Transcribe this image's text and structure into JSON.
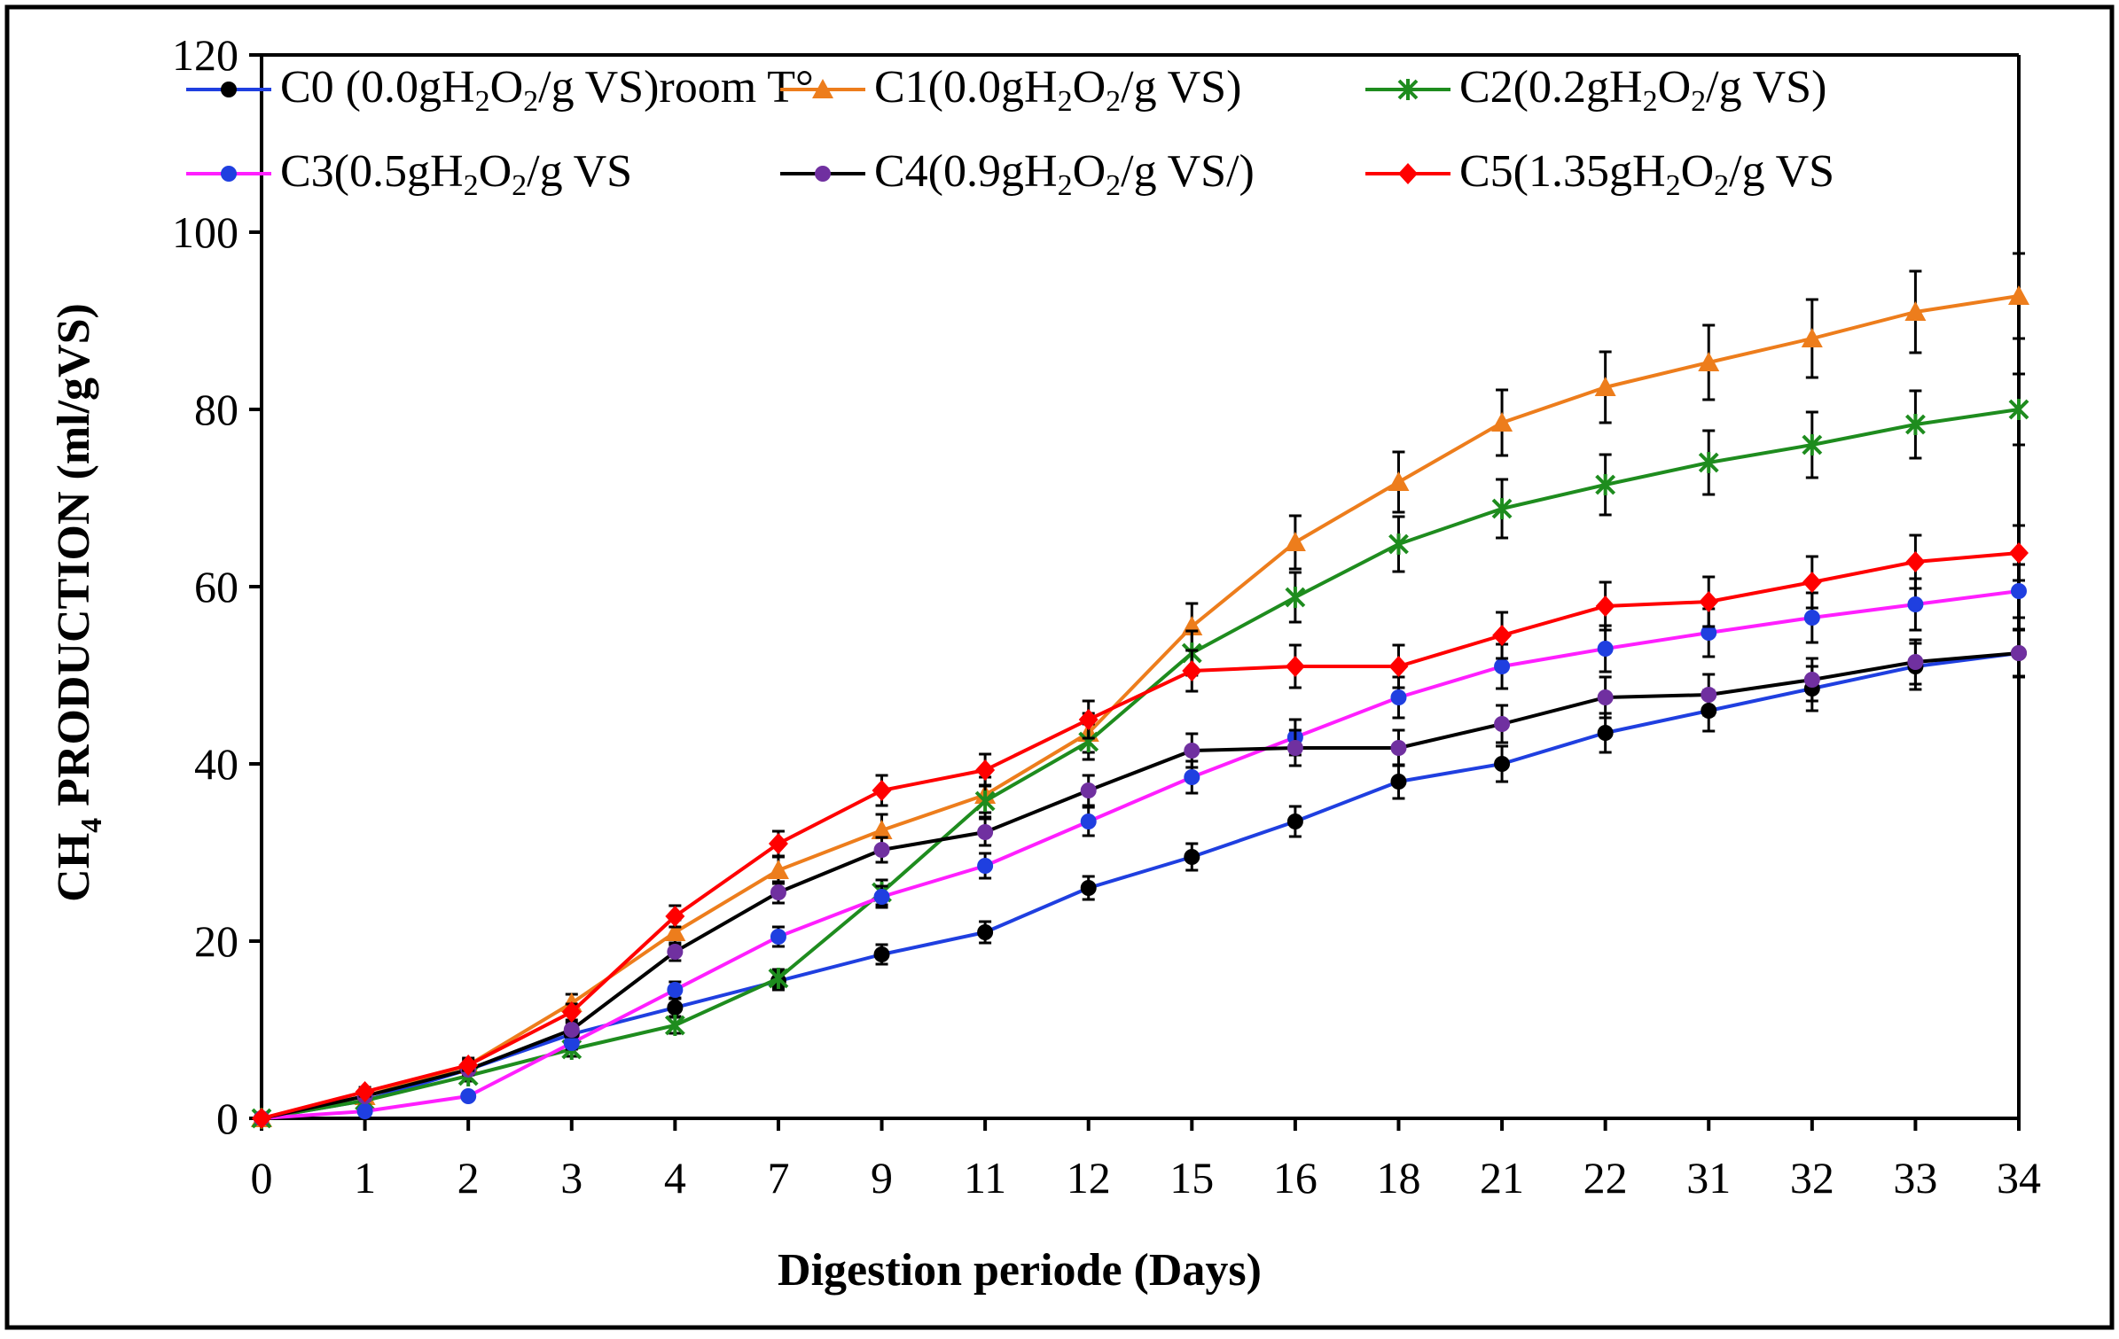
{
  "chart_data": {
    "type": "line",
    "title": "",
    "xlabel": "Digestion periode (Days)",
    "ylabel_main": "CH",
    "ylabel_sub": "4",
    "ylabel_rest": " PRODUCTION (ml/gVS)",
    "categories": [
      "0",
      "1",
      "2",
      "3",
      "4",
      "7",
      "9",
      "11",
      "12",
      "15",
      "16",
      "18",
      "21",
      "22",
      "31",
      "32",
      "33",
      "34"
    ],
    "ylim": [
      0,
      120
    ],
    "yticks": [
      0,
      20,
      40,
      60,
      80,
      100,
      120
    ],
    "ytick_labels": [
      "0",
      "20",
      "40",
      "60",
      "80",
      "100",
      "120"
    ],
    "grid": false,
    "legend_position": "top",
    "series": [
      {
        "name": "C0 (0.0gH2O2/g VS)room T°",
        "legend_parts": [
          "C0 (0.0gH",
          "2",
          "O",
          "2",
          "/g VS)room T°"
        ],
        "color": "#1f3fe0",
        "marker": "circle",
        "marker_color": "#000000",
        "values": [
          0,
          2.0,
          5.5,
          9.5,
          12.5,
          15.5,
          18.5,
          21.0,
          26.0,
          29.5,
          33.5,
          38.0,
          40.0,
          43.5,
          46.0,
          48.5,
          51.0,
          52.5
        ],
        "errors": [
          0.3,
          0.5,
          0.6,
          0.8,
          1.0,
          1.0,
          1.1,
          1.2,
          1.3,
          1.5,
          1.7,
          1.9,
          2.0,
          2.2,
          2.3,
          2.5,
          2.6,
          2.7
        ]
      },
      {
        "name": "C1(0.0gH2O2/g VS)",
        "legend_parts": [
          "C1(0.0gH",
          "2",
          "O",
          "2",
          "/g VS)"
        ],
        "color": "#ed7d1c",
        "marker": "triangle",
        "marker_color": "#ed7d1c",
        "values": [
          0,
          2.5,
          6.0,
          13.0,
          21.0,
          28.0,
          32.5,
          36.5,
          43.5,
          55.5,
          65.0,
          71.8,
          78.5,
          82.5,
          85.3,
          88.0,
          91.0,
          92.8
        ],
        "errors": [
          0.4,
          0.6,
          0.8,
          1.0,
          1.4,
          1.5,
          1.8,
          2.0,
          2.2,
          2.6,
          3.0,
          3.4,
          3.7,
          4.0,
          4.2,
          4.4,
          4.6,
          4.8
        ]
      },
      {
        "name": "C2(0.2gH2O2/g VS)",
        "legend_parts": [
          "C2(0.2gH",
          "2",
          "O",
          "2",
          "/g VS)"
        ],
        "color": "#1e8c1e",
        "marker": "asterisk",
        "marker_color": "#1e8c1e",
        "values": [
          0,
          2.0,
          4.8,
          7.8,
          10.5,
          15.8,
          25.5,
          35.8,
          42.5,
          52.5,
          58.8,
          64.8,
          68.8,
          71.5,
          74.0,
          76.0,
          78.3,
          80.0
        ],
        "errors": [
          0.3,
          0.5,
          0.6,
          0.8,
          0.9,
          1.0,
          1.4,
          1.8,
          2.0,
          2.5,
          2.8,
          3.1,
          3.3,
          3.4,
          3.6,
          3.7,
          3.8,
          4.0
        ]
      },
      {
        "name": "C3(0.5gH2O2/g VS",
        "legend_parts": [
          "C3(0.5gH",
          "2",
          "O",
          "2",
          "/g VS"
        ],
        "color": "#ff1fff",
        "marker": "circle",
        "marker_color": "#1f3fe0",
        "values": [
          0,
          0.8,
          2.5,
          8.5,
          14.5,
          20.5,
          25.0,
          28.5,
          33.5,
          38.5,
          43.0,
          47.5,
          51.0,
          53.0,
          54.8,
          56.5,
          58.0,
          59.5
        ],
        "errors": [
          0.2,
          0.3,
          0.4,
          0.7,
          0.9,
          1.1,
          1.2,
          1.4,
          1.6,
          1.8,
          2.0,
          2.3,
          2.5,
          2.6,
          2.7,
          2.8,
          2.9,
          3.0
        ]
      },
      {
        "name": "C4(0.9gH2O2/g VS/)",
        "legend_parts": [
          "C4(0.9gH",
          "2",
          "O",
          "2",
          "/g VS/)"
        ],
        "color": "#000000",
        "marker": "circle",
        "marker_color": "#7030a0",
        "values": [
          0,
          2.5,
          5.5,
          10.0,
          18.8,
          25.5,
          30.3,
          32.3,
          37.0,
          41.5,
          41.8,
          41.8,
          44.5,
          47.5,
          47.8,
          49.5,
          51.5,
          52.5
        ],
        "errors": [
          0.3,
          0.5,
          0.6,
          0.8,
          1.0,
          1.2,
          1.4,
          1.5,
          1.7,
          1.9,
          2.0,
          2.0,
          2.1,
          2.3,
          2.3,
          2.4,
          2.5,
          2.6
        ]
      },
      {
        "name": "C5(1.35gH2O2/g VS",
        "legend_parts": [
          "C5(1.35gH",
          "2",
          "O",
          "2",
          "/g VS"
        ],
        "color": "#ff0000",
        "marker": "diamond",
        "marker_color": "#ff0000",
        "values": [
          0,
          3.0,
          6.0,
          12.0,
          22.8,
          31.0,
          37.0,
          39.3,
          45.0,
          50.5,
          51.0,
          51.0,
          54.5,
          57.8,
          58.3,
          60.5,
          62.8,
          63.8
        ],
        "errors": [
          0.3,
          0.5,
          0.6,
          0.9,
          1.2,
          1.4,
          1.7,
          1.8,
          2.1,
          2.3,
          2.4,
          2.4,
          2.6,
          2.7,
          2.8,
          2.9,
          3.0,
          3.1
        ]
      }
    ]
  }
}
